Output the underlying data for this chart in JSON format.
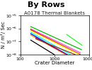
{
  "title": "By Rows",
  "subtitle": "A0178 Thermal Blankets",
  "xlabel": "Crater Diameter",
  "ylabel": "N / m²/ Sec",
  "xlim": [
    100,
    10000
  ],
  "ylim": [
    1e-08,
    1e-05
  ],
  "line_params": [
    [
      "#00bb00",
      200,
      6000,
      1.4e-06,
      -1.2
    ],
    [
      "#ff44cc",
      200,
      5500,
      9.5e-07,
      -1.28
    ],
    [
      "#dd0000",
      200,
      5500,
      8e-07,
      -1.32
    ],
    [
      "#ffff00",
      200,
      5000,
      6.8e-07,
      -1.3
    ],
    [
      "#00ffff",
      200,
      4500,
      5.2e-07,
      -1.48
    ],
    [
      "#0000ff",
      200,
      4200,
      4e-07,
      -1.52
    ],
    [
      "#ff8800",
      200,
      4200,
      3.2e-07,
      -1.48
    ],
    [
      "#880088",
      280,
      4500,
      2e-07,
      -1.42
    ],
    [
      "#993300",
      280,
      5500,
      1.6e-07,
      -1.05
    ],
    [
      "#000000",
      200,
      5000,
      1.3e-07,
      -1.62
    ],
    [
      "#33ee33",
      2200,
      6200,
      3.5e-07,
      -1.85
    ]
  ],
  "bg_color": "#ffffff",
  "title_fontsize": 8,
  "subtitle_fontsize": 5,
  "label_fontsize": 5,
  "tick_fontsize": 4.5
}
